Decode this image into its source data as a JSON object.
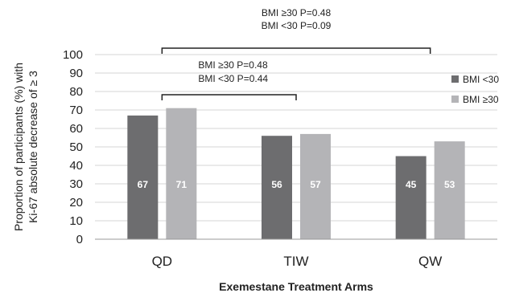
{
  "chart_data": {
    "type": "bar",
    "categories": [
      "QD",
      "TIW",
      "QW"
    ],
    "series": [
      {
        "name": "BMI <30",
        "values": [
          67,
          56,
          45
        ],
        "color": "#6d6d6f"
      },
      {
        "name": "BMI ≥30",
        "values": [
          71,
          57,
          53
        ],
        "color": "#b4b4b7"
      }
    ],
    "ylabel_lines": [
      "Proportion of participants (%) with",
      "Ki-67 absolute decrease of ≥ 3"
    ],
    "xlabel": "Exemestane Treatment Arms",
    "ylim": [
      0,
      100
    ],
    "yticks": [
      0,
      10,
      20,
      30,
      40,
      50,
      60,
      70,
      80,
      90,
      100
    ],
    "grid": true,
    "legend_position": "right",
    "annotations": [
      {
        "from": "QD",
        "to": "TIW",
        "lines": [
          "BMI ≥30 P=0.48",
          "BMI <30 P=0.44"
        ]
      },
      {
        "from": "QD",
        "to": "QW",
        "lines": [
          "BMI ≥30 P=0.48",
          "BMI <30 P=0.09"
        ]
      }
    ]
  }
}
